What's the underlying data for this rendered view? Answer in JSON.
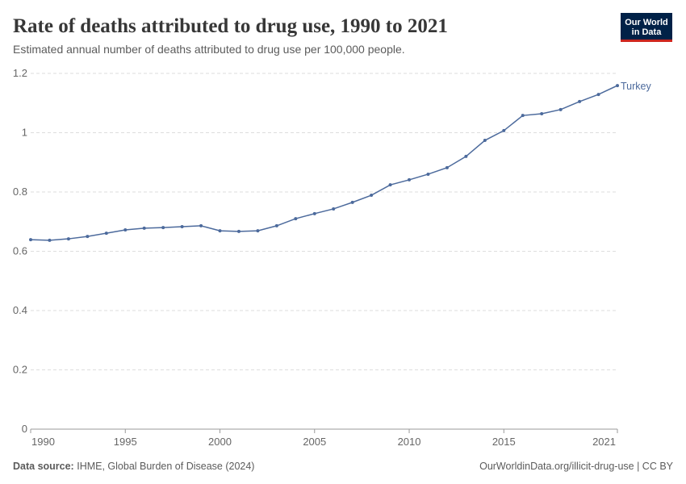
{
  "chart_data": {
    "type": "line",
    "title": "Rate of deaths attributed to drug use, 1990 to 2021",
    "subtitle": "Estimated annual number of deaths attributed to drug use per 100,000 people.",
    "x": [
      1990,
      1991,
      1992,
      1993,
      1994,
      1995,
      1996,
      1997,
      1998,
      1999,
      2000,
      2001,
      2002,
      2003,
      2004,
      2005,
      2006,
      2007,
      2008,
      2009,
      2010,
      2011,
      2012,
      2013,
      2014,
      2015,
      2016,
      2017,
      2018,
      2019,
      2020,
      2021
    ],
    "series": [
      {
        "name": "Turkey",
        "color": "#4c6a9c",
        "values": [
          0.639,
          0.637,
          0.642,
          0.65,
          0.661,
          0.672,
          0.678,
          0.68,
          0.683,
          0.686,
          0.669,
          0.667,
          0.669,
          0.686,
          0.71,
          0.727,
          0.743,
          0.765,
          0.789,
          0.824,
          0.841,
          0.86,
          0.882,
          0.92,
          0.974,
          1.007,
          1.058,
          1.064,
          1.078,
          1.105,
          1.129,
          1.159
        ]
      }
    ],
    "xlim": [
      1990,
      2021
    ],
    "xticks": [
      1990,
      1995,
      2000,
      2005,
      2010,
      2015,
      2021
    ],
    "ylim": [
      0,
      1.2
    ],
    "yticks": [
      0,
      0.2,
      0.4,
      0.6,
      0.8,
      1,
      1.2
    ],
    "grid": true,
    "source_label": "Data source:",
    "source": "IHME, Global Burden of Disease (2024)",
    "url": "OurWorldinData.org/illicit-drug-use | CC BY",
    "logo": [
      "Our World",
      "in Data"
    ]
  }
}
